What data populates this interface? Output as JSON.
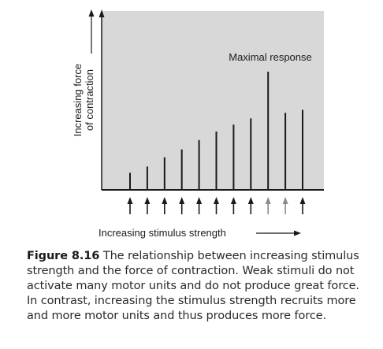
{
  "chart_data": {
    "type": "bar",
    "ylabel_line1": "Increasing force",
    "ylabel_line2": "of contraction",
    "xlabel": "Increasing stimulus strength",
    "annotation": "Maximal response",
    "values": [
      22,
      30,
      42,
      52,
      64,
      75,
      84,
      92,
      152,
      99,
      103
    ],
    "arrow_color": "#1a1a1a",
    "faded_arrow_indices": [
      8,
      9
    ],
    "faded_arrow_color": "#8a8a8a",
    "plot_background": "#d8d8d8",
    "bar_color": "#1a1a1a",
    "ylim": [
      0,
      230
    ]
  },
  "caption": {
    "label": "Figure 8.16",
    "text": "The relationship between increasing stimulus strength and the force of contraction. Weak stimuli do not activate many motor units and do not produce great force. In contrast, increasing the stimulus strength recruits more and more motor units and thus produces more force."
  }
}
